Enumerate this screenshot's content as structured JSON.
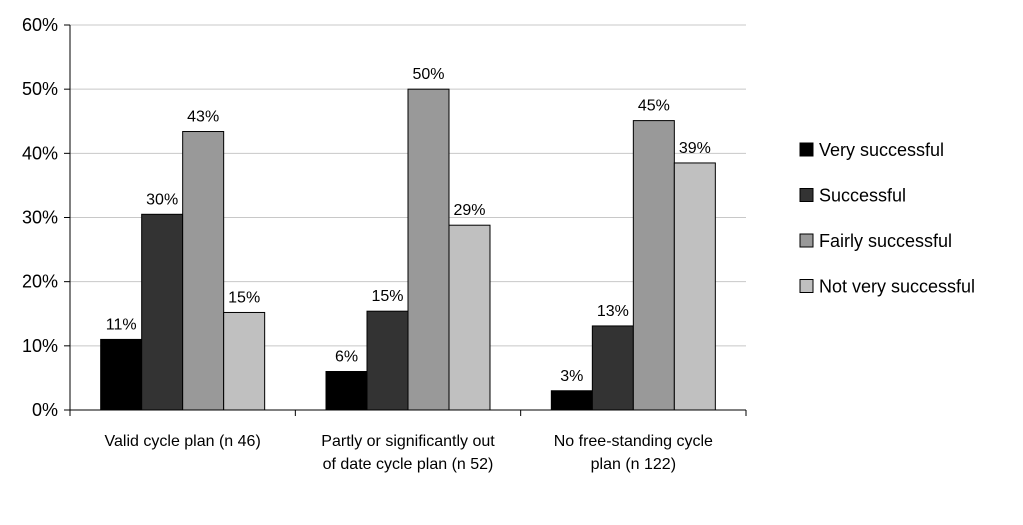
{
  "chart_data": {
    "type": "bar",
    "categories": [
      [
        "Valid cycle plan (n 46)"
      ],
      [
        "Partly or significantly out",
        "of date cycle plan (n 52)"
      ],
      [
        "No free-standing cycle",
        "plan (n 122)"
      ]
    ],
    "series": [
      {
        "name": "Very successful",
        "values": [
          11,
          6,
          3
        ],
        "labels": [
          "11%",
          "6%",
          "3%"
        ],
        "color": "#000000"
      },
      {
        "name": "Successful",
        "values": [
          30.5,
          15.4,
          13.1
        ],
        "labels": [
          "30%",
          "15%",
          "13%"
        ],
        "color": "#333333"
      },
      {
        "name": "Fairly successful",
        "values": [
          43.4,
          50,
          45.1
        ],
        "labels": [
          "43%",
          "50%",
          "45%"
        ],
        "color": "#999999"
      },
      {
        "name": "Not very successful",
        "values": [
          15.2,
          28.8,
          38.5
        ],
        "labels": [
          "15%",
          "29%",
          "39%"
        ],
        "color": "#c0c0c0"
      }
    ],
    "yticks": [
      "0%",
      "10%",
      "20%",
      "30%",
      "40%",
      "50%",
      "60%"
    ],
    "ylim": [
      0,
      60
    ],
    "grid": true,
    "legend_position": "right",
    "title": "",
    "xlabel": "",
    "ylabel": ""
  }
}
